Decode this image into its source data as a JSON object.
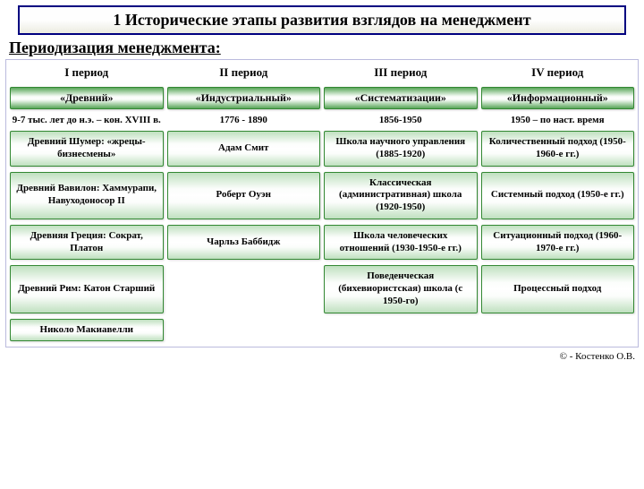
{
  "header": "1 Исторические этапы развития взглядов на менеджмент",
  "subtitle": "Периодизация менеджмента:",
  "columns": [
    "I период",
    "II период",
    "III период",
    "IV период"
  ],
  "periods": [
    "«Древний»",
    "«Индустриальный»",
    "«Систематизации»",
    "«Информационный»"
  ],
  "dates": [
    "9-7 тыс. лет до н.э. – кон. XVIII в.",
    "1776 - 1890",
    "1856-1950",
    "1950 – по наст. время"
  ],
  "rows": {
    "r1": [
      "Древний Шумер: «жрецы-бизнесмены»",
      "Адам Смит",
      "Школа научного управления (1885-1920)",
      "Количественный подход (1950-1960-е гг.)"
    ],
    "r2": [
      "Древний Вавилон: Хаммурапи, Навуходоносор II",
      "Роберт Оуэн",
      "Классическая (административная) школа (1920-1950)",
      "Системный подход (1950-е гг.)"
    ],
    "r3": [
      "Древняя Греция: Сократ, Платон",
      "Чарльз Баббидж",
      "Школа человеческих отношений (1930-1950-е гг.)",
      "Ситуационный подход (1960-1970-е гг.)"
    ],
    "r4": [
      "Древний Рим: Катон Старший",
      "",
      "Поведенческая (бихевиористская) школа (с 1950-го)",
      "Процессный подход"
    ],
    "r5": [
      "Николо Макиавелли",
      "",
      "",
      ""
    ]
  },
  "footer": "© - Костенко О.В.",
  "style": {
    "header_border": "#000080",
    "box_border": "#338833",
    "period_gradient_edge": "#59a659",
    "period_gradient_mid": "#ffffff",
    "item_gradient_edge": "#bfe0bf",
    "item_gradient_mid": "#ffffff",
    "frame_border": "#bbbbdd",
    "title_fontsize": 18,
    "subtitle_fontsize": 18,
    "colhead_fontsize": 13,
    "period_fontsize": 12,
    "date_fontsize": 11,
    "item_fontsize": 11,
    "footer_fontsize": 11,
    "grid_cols": 4,
    "col_gap": 4,
    "row_gap": 6
  }
}
